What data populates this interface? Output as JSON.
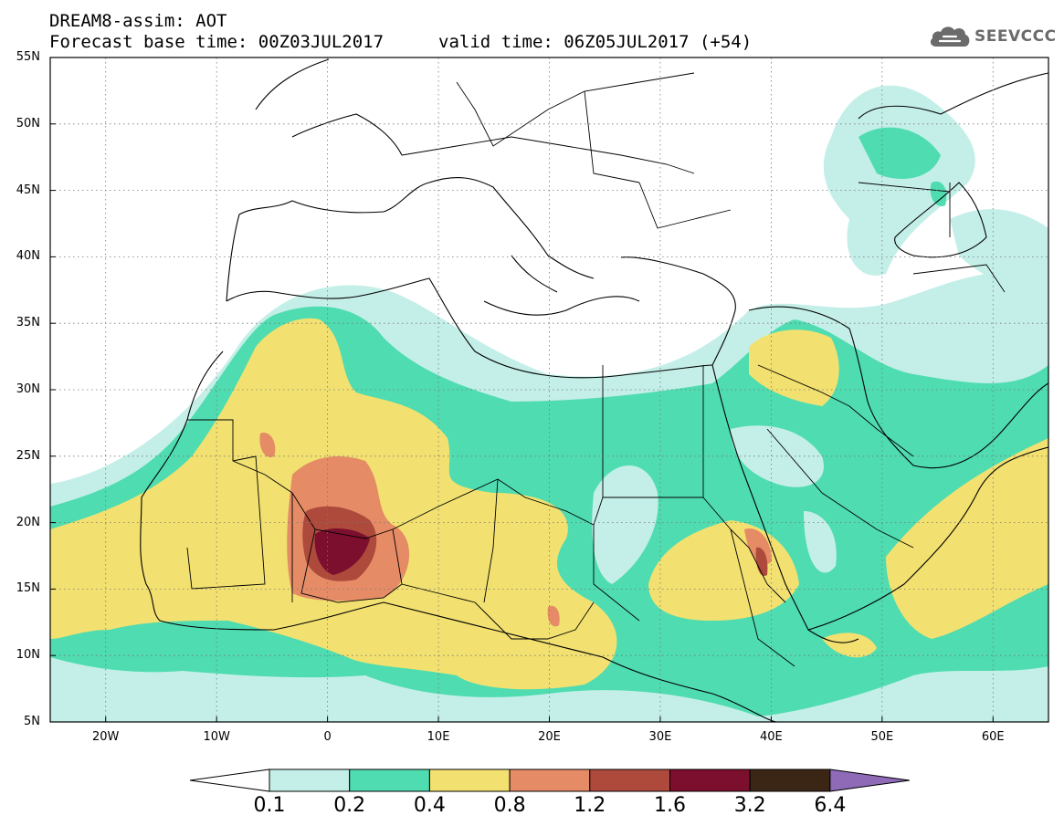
{
  "header": {
    "title": "DREAM8-assim: AOT",
    "forecast_base": "Forecast base time: 00Z03JUL2017",
    "valid_time": "valid time: 06Z05JUL2017 (+54)"
  },
  "logo": {
    "icon": "cloud-logo-icon",
    "text": "SEEVCCC"
  },
  "map": {
    "lon_range": [
      -25,
      65
    ],
    "lat_range": [
      5,
      55
    ],
    "lat_labels": [
      "55N",
      "50N",
      "45N",
      "40N",
      "35N",
      "30N",
      "25N",
      "20N",
      "15N",
      "10N",
      "5N"
    ],
    "lon_labels": [
      "20W",
      "10W",
      "0",
      "10E",
      "20E",
      "30E",
      "40E",
      "50E",
      "60E"
    ],
    "grid": true
  },
  "colorbar": {
    "thresholds": [
      "0.1",
      "0.2",
      "0.4",
      "0.8",
      "1.2",
      "1.6",
      "3.2",
      "6.4"
    ],
    "colors": [
      "#c4efe8",
      "#4fdcb0",
      "#f2e170",
      "#e58c66",
      "#ad4a3c",
      "#7c0f2e",
      "#3b2616",
      "#8e6ab7"
    ]
  }
}
